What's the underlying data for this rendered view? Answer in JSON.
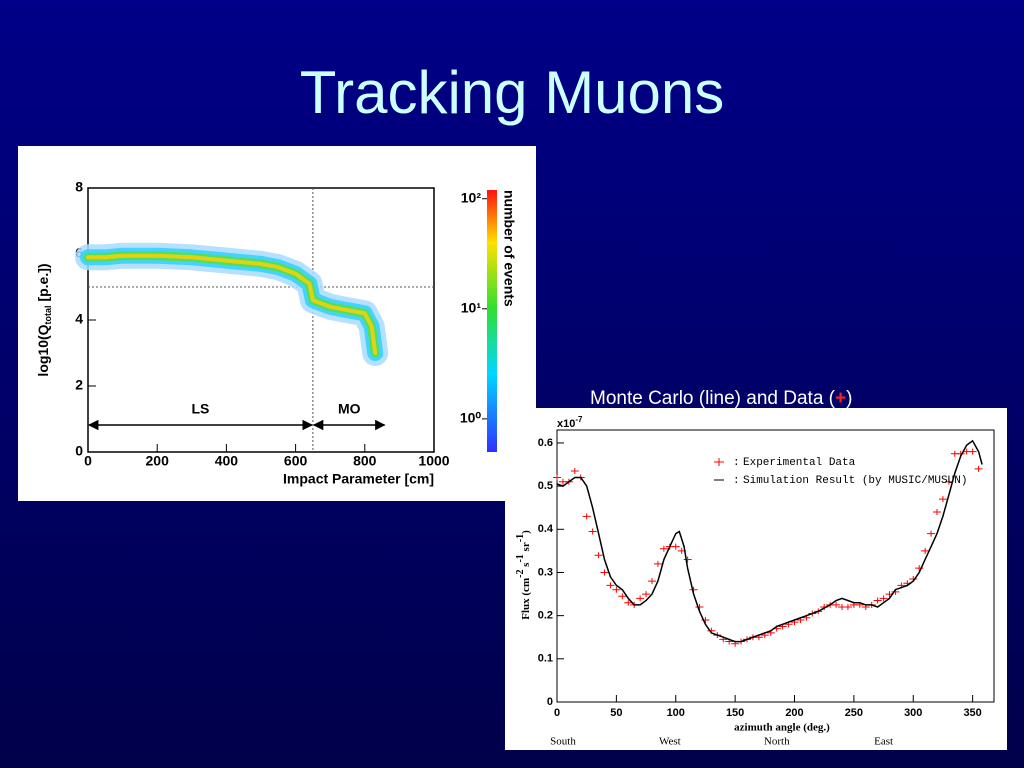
{
  "title": "Tracking Muons",
  "subtitle": [
    "Monte Carlo (line) and Data (",
    "+",
    ")"
  ],
  "chart_data": [
    {
      "type": "density",
      "xlabel": "Impact Parameter [cm]",
      "ylabel": [
        "log10(Q",
        "total",
        " [p.e.])"
      ],
      "xlim": [
        0,
        1000
      ],
      "xticks": [
        0,
        200,
        400,
        600,
        800,
        1000
      ],
      "ylim": [
        0,
        8
      ],
      "yticks": [
        0,
        2,
        4,
        6,
        8
      ],
      "x": [
        0,
        50,
        100,
        200,
        300,
        400,
        500,
        550,
        600,
        640,
        650,
        700,
        750,
        800,
        820,
        830
      ],
      "values": [
        5.9,
        5.9,
        5.95,
        5.95,
        5.9,
        5.8,
        5.7,
        5.6,
        5.4,
        5.1,
        4.6,
        4.4,
        4.3,
        4.2,
        3.8,
        3.0
      ],
      "reference_lines": {
        "x": 650,
        "y": 5
      },
      "regions": [
        {
          "label": "LS",
          "span": [
            0,
            650
          ]
        },
        {
          "label": "MO",
          "span": [
            650,
            860
          ]
        }
      ],
      "colorbar": {
        "label": "number of events",
        "log": true,
        "lim": [
          0.5,
          120
        ],
        "ticks": [
          {
            "value": 1,
            "label": "10⁰"
          },
          {
            "value": 10,
            "label": "10¹"
          },
          {
            "value": 100,
            "label": "10²"
          }
        ]
      }
    },
    {
      "type": "line",
      "xlabel": "azimuth angle (deg.)",
      "ylabel": [
        "Flux (cm",
        "-2",
        " s",
        "-1",
        " sr",
        "-1",
        ")"
      ],
      "y_multiplier": [
        "x10",
        "-7"
      ],
      "xlim": [
        0,
        368
      ],
      "xticks": [
        0,
        50,
        100,
        150,
        200,
        250,
        300,
        350
      ],
      "ylim": [
        0,
        0.63
      ],
      "yticks": [
        0,
        0.1,
        0.2,
        0.3,
        0.4,
        0.5,
        0.6
      ],
      "legend_separator": ":",
      "directions": [
        {
          "value": 0,
          "label": "South"
        },
        {
          "value": 90,
          "label": "West"
        },
        {
          "value": 180,
          "label": "North"
        },
        {
          "value": 270,
          "label": "East"
        }
      ],
      "series": [
        {
          "name": "Experimental Data",
          "style": "markers",
          "color": "#ff0000",
          "x": [
            0,
            5,
            10,
            15,
            20,
            25,
            30,
            35,
            40,
            45,
            50,
            55,
            60,
            65,
            70,
            75,
            80,
            85,
            90,
            95,
            100,
            105,
            110,
            115,
            120,
            125,
            130,
            135,
            140,
            145,
            150,
            155,
            160,
            165,
            170,
            175,
            180,
            185,
            190,
            195,
            200,
            205,
            210,
            215,
            220,
            225,
            230,
            235,
            240,
            245,
            250,
            255,
            260,
            265,
            270,
            275,
            280,
            285,
            290,
            295,
            300,
            305,
            310,
            315,
            320,
            325,
            330,
            335,
            340,
            345,
            350,
            355
          ],
          "values": [
            0.52,
            0.51,
            0.51,
            0.535,
            0.52,
            0.43,
            0.395,
            0.34,
            0.3,
            0.27,
            0.26,
            0.245,
            0.23,
            0.225,
            0.24,
            0.25,
            0.28,
            0.32,
            0.355,
            0.36,
            0.36,
            0.35,
            0.33,
            0.26,
            0.22,
            0.19,
            0.165,
            0.155,
            0.145,
            0.14,
            0.135,
            0.14,
            0.145,
            0.15,
            0.15,
            0.155,
            0.16,
            0.17,
            0.175,
            0.18,
            0.185,
            0.19,
            0.195,
            0.205,
            0.21,
            0.22,
            0.225,
            0.225,
            0.22,
            0.22,
            0.225,
            0.225,
            0.22,
            0.225,
            0.235,
            0.24,
            0.25,
            0.255,
            0.27,
            0.275,
            0.285,
            0.31,
            0.35,
            0.39,
            0.44,
            0.47,
            0.51,
            0.575,
            0.575,
            0.58,
            0.58,
            0.54
          ]
        },
        {
          "name": "Simulation Result (by MUSIC/MUSUN)",
          "style": "line",
          "color": "#000000",
          "x": [
            0,
            5,
            10,
            15,
            20,
            25,
            30,
            35,
            40,
            45,
            50,
            55,
            60,
            65,
            70,
            75,
            80,
            85,
            90,
            95,
            100,
            103,
            107,
            110,
            115,
            120,
            125,
            130,
            135,
            140,
            145,
            150,
            155,
            160,
            165,
            170,
            175,
            180,
            185,
            190,
            195,
            200,
            210,
            220,
            230,
            235,
            240,
            245,
            250,
            255,
            260,
            265,
            270,
            275,
            280,
            285,
            290,
            295,
            300,
            305,
            310,
            315,
            320,
            325,
            330,
            335,
            340,
            345,
            350,
            355,
            358
          ],
          "values": [
            0.505,
            0.5,
            0.51,
            0.52,
            0.52,
            0.5,
            0.45,
            0.39,
            0.33,
            0.29,
            0.27,
            0.26,
            0.24,
            0.225,
            0.225,
            0.235,
            0.25,
            0.28,
            0.33,
            0.36,
            0.39,
            0.395,
            0.36,
            0.31,
            0.25,
            0.21,
            0.18,
            0.16,
            0.155,
            0.15,
            0.145,
            0.14,
            0.14,
            0.145,
            0.15,
            0.155,
            0.16,
            0.165,
            0.175,
            0.18,
            0.185,
            0.19,
            0.2,
            0.21,
            0.225,
            0.235,
            0.24,
            0.235,
            0.23,
            0.23,
            0.225,
            0.225,
            0.22,
            0.23,
            0.24,
            0.26,
            0.265,
            0.27,
            0.28,
            0.3,
            0.33,
            0.36,
            0.39,
            0.43,
            0.48,
            0.53,
            0.57,
            0.595,
            0.605,
            0.58,
            0.55
          ]
        }
      ]
    }
  ]
}
